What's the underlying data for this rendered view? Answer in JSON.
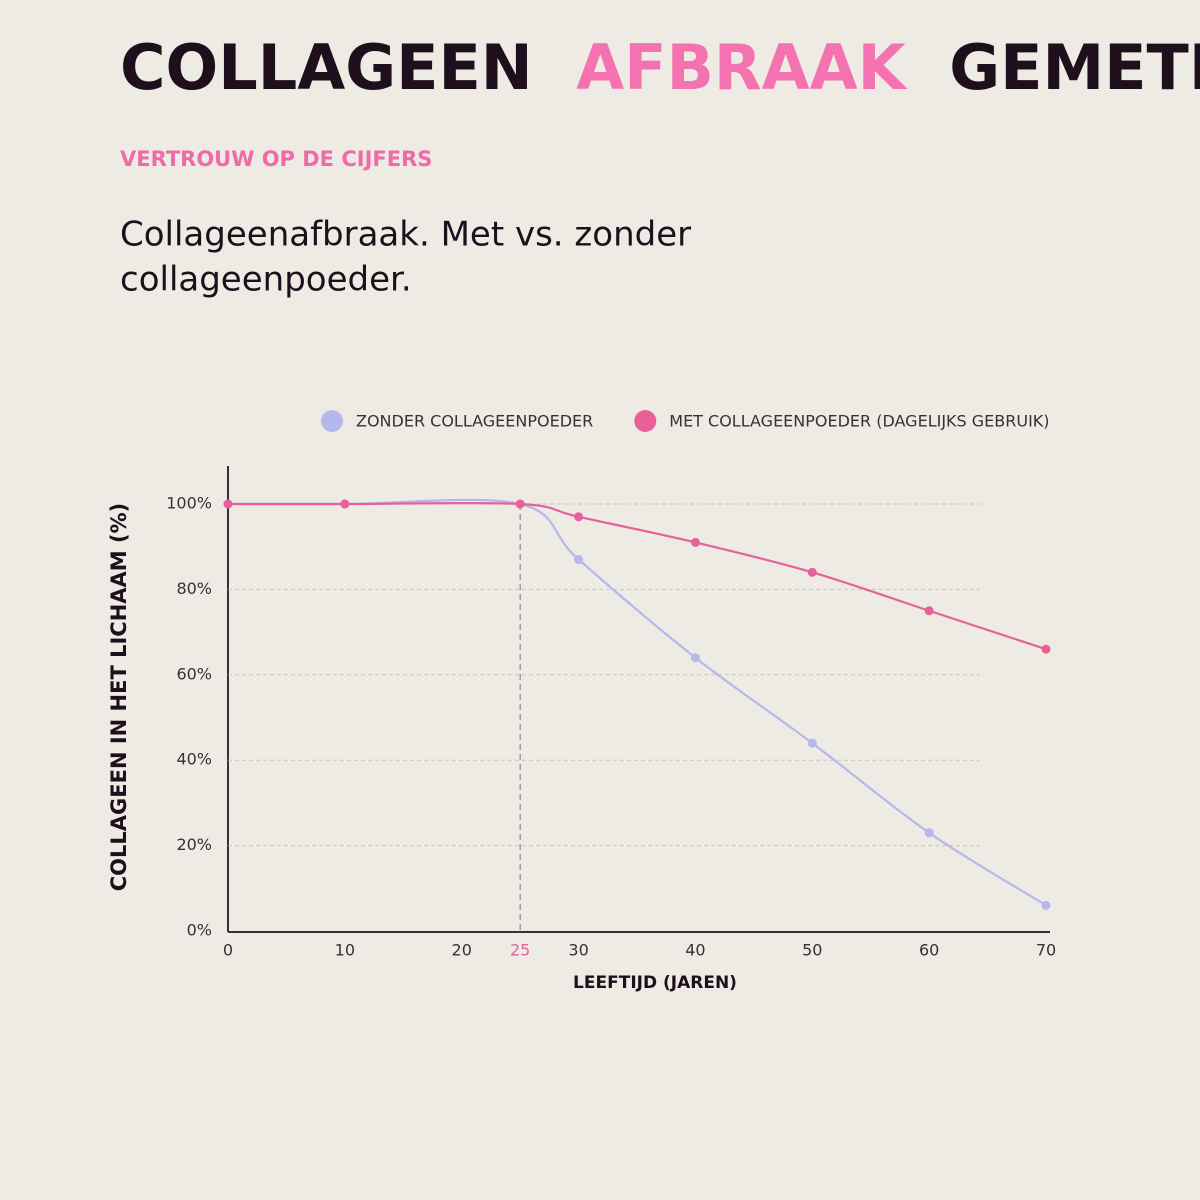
{
  "chart_data": {
    "type": "line",
    "title": [
      "COLLAGEEN",
      "AFBRAAK",
      "GEMETEN."
    ],
    "title_highlight_color": "#f472b0",
    "kicker": "VERTROUW OP DE CIJFERS",
    "subtitle": [
      "Collageenafbraak. Met vs. zonder",
      "collageenpoeder."
    ],
    "x_label": "LEEFTIJD (JAREN)",
    "y_label": "COLLAGEEN IN HET LICHAAM (%)",
    "x": [
      0,
      10,
      25,
      30,
      40,
      50,
      60,
      70
    ],
    "series": [
      {
        "name": "ZONDER COLLAGEENPOEDER",
        "color": "#b4b8ec",
        "values": [
          100,
          100,
          100,
          87,
          64,
          44,
          23,
          6
        ]
      },
      {
        "name": "MET COLLAGEENPOEDER (DAGELIJKS GEBRUIK)",
        "color": "#e8609a",
        "values": [
          100,
          100,
          100,
          97,
          91,
          84,
          75,
          66
        ]
      }
    ],
    "xlim": [
      0,
      70
    ],
    "xticks": [
      0,
      10,
      20,
      25,
      30,
      40,
      50,
      60,
      70
    ],
    "highlight_x": 25,
    "ylim": [
      0,
      100
    ],
    "yticks": [
      {
        "value": 0,
        "label": "0%"
      },
      {
        "value": 20,
        "label": "20%"
      },
      {
        "value": 40,
        "label": "40%"
      },
      {
        "value": 60,
        "label": "60%"
      },
      {
        "value": 80,
        "label": "80%"
      },
      {
        "value": 100,
        "label": "100%"
      }
    ],
    "grid": true
  }
}
